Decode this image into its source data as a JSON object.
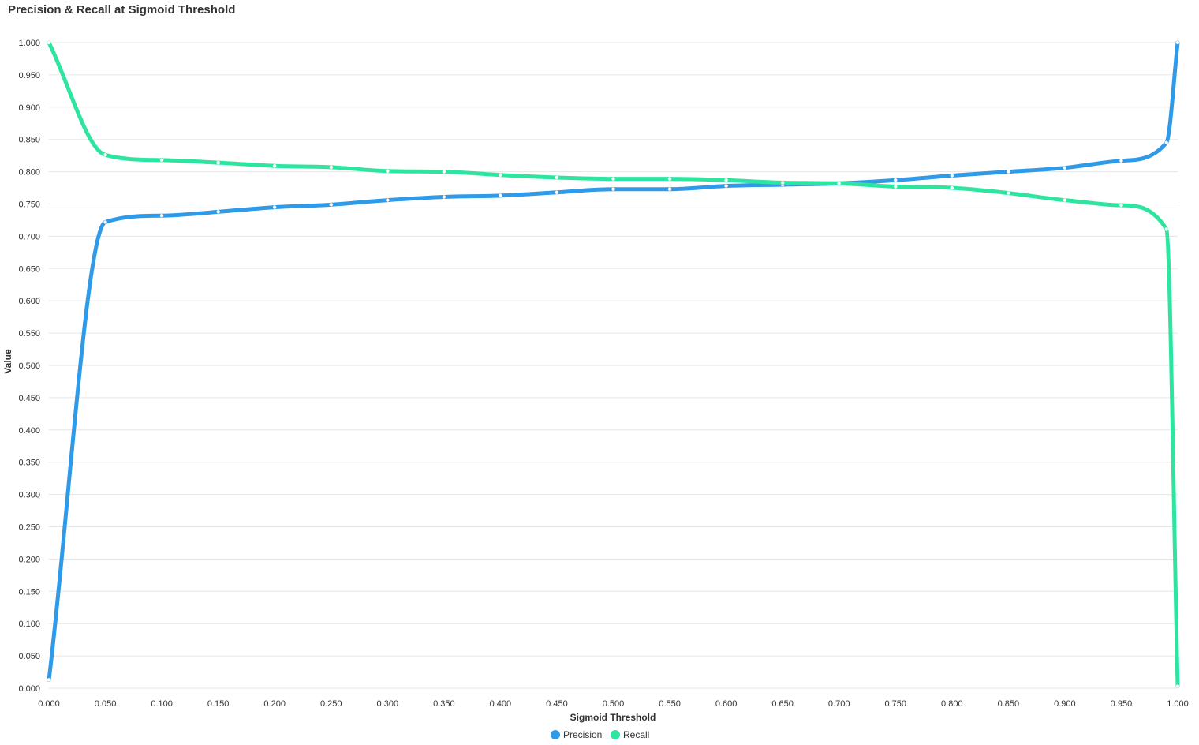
{
  "chart_data": {
    "type": "line",
    "title": "Precision & Recall at Sigmoid Threshold",
    "xlabel": "Sigmoid Threshold",
    "ylabel": "Value",
    "xlim": [
      0,
      1
    ],
    "ylim": [
      0,
      1
    ],
    "x_ticks": [
      "0.000",
      "0.050",
      "0.100",
      "0.150",
      "0.200",
      "0.250",
      "0.300",
      "0.350",
      "0.400",
      "0.450",
      "0.500",
      "0.550",
      "0.600",
      "0.650",
      "0.700",
      "0.750",
      "0.800",
      "0.850",
      "0.900",
      "0.950",
      "1.000"
    ],
    "y_ticks": [
      "0.000",
      "0.050",
      "0.100",
      "0.150",
      "0.200",
      "0.250",
      "0.300",
      "0.350",
      "0.400",
      "0.450",
      "0.500",
      "0.550",
      "0.600",
      "0.650",
      "0.700",
      "0.750",
      "0.800",
      "0.850",
      "0.900",
      "0.950",
      "1.000"
    ],
    "grid": true,
    "legend_position": "bottom-center",
    "series": [
      {
        "name": "Precision",
        "color": "#2f9ae8",
        "x": [
          0,
          0.05,
          0.1,
          0.15,
          0.2,
          0.25,
          0.3,
          0.35,
          0.4,
          0.45,
          0.5,
          0.55,
          0.6,
          0.65,
          0.7,
          0.75,
          0.8,
          0.85,
          0.9,
          0.95,
          0.99,
          1.0
        ],
        "values": [
          0.013,
          0.722,
          0.732,
          0.738,
          0.745,
          0.749,
          0.756,
          0.761,
          0.763,
          0.768,
          0.773,
          0.773,
          0.778,
          0.78,
          0.782,
          0.787,
          0.794,
          0.8,
          0.806,
          0.817,
          0.845,
          1.0
        ]
      },
      {
        "name": "Recall",
        "color": "#2ee5a0",
        "x": [
          0,
          0.05,
          0.1,
          0.15,
          0.2,
          0.25,
          0.3,
          0.35,
          0.4,
          0.45,
          0.5,
          0.55,
          0.6,
          0.65,
          0.7,
          0.75,
          0.8,
          0.85,
          0.9,
          0.95,
          0.99,
          1.0
        ],
        "values": [
          1.0,
          0.826,
          0.818,
          0.814,
          0.809,
          0.807,
          0.801,
          0.8,
          0.795,
          0.791,
          0.789,
          0.789,
          0.787,
          0.783,
          0.782,
          0.777,
          0.775,
          0.767,
          0.756,
          0.748,
          0.711,
          0.003
        ]
      }
    ]
  }
}
